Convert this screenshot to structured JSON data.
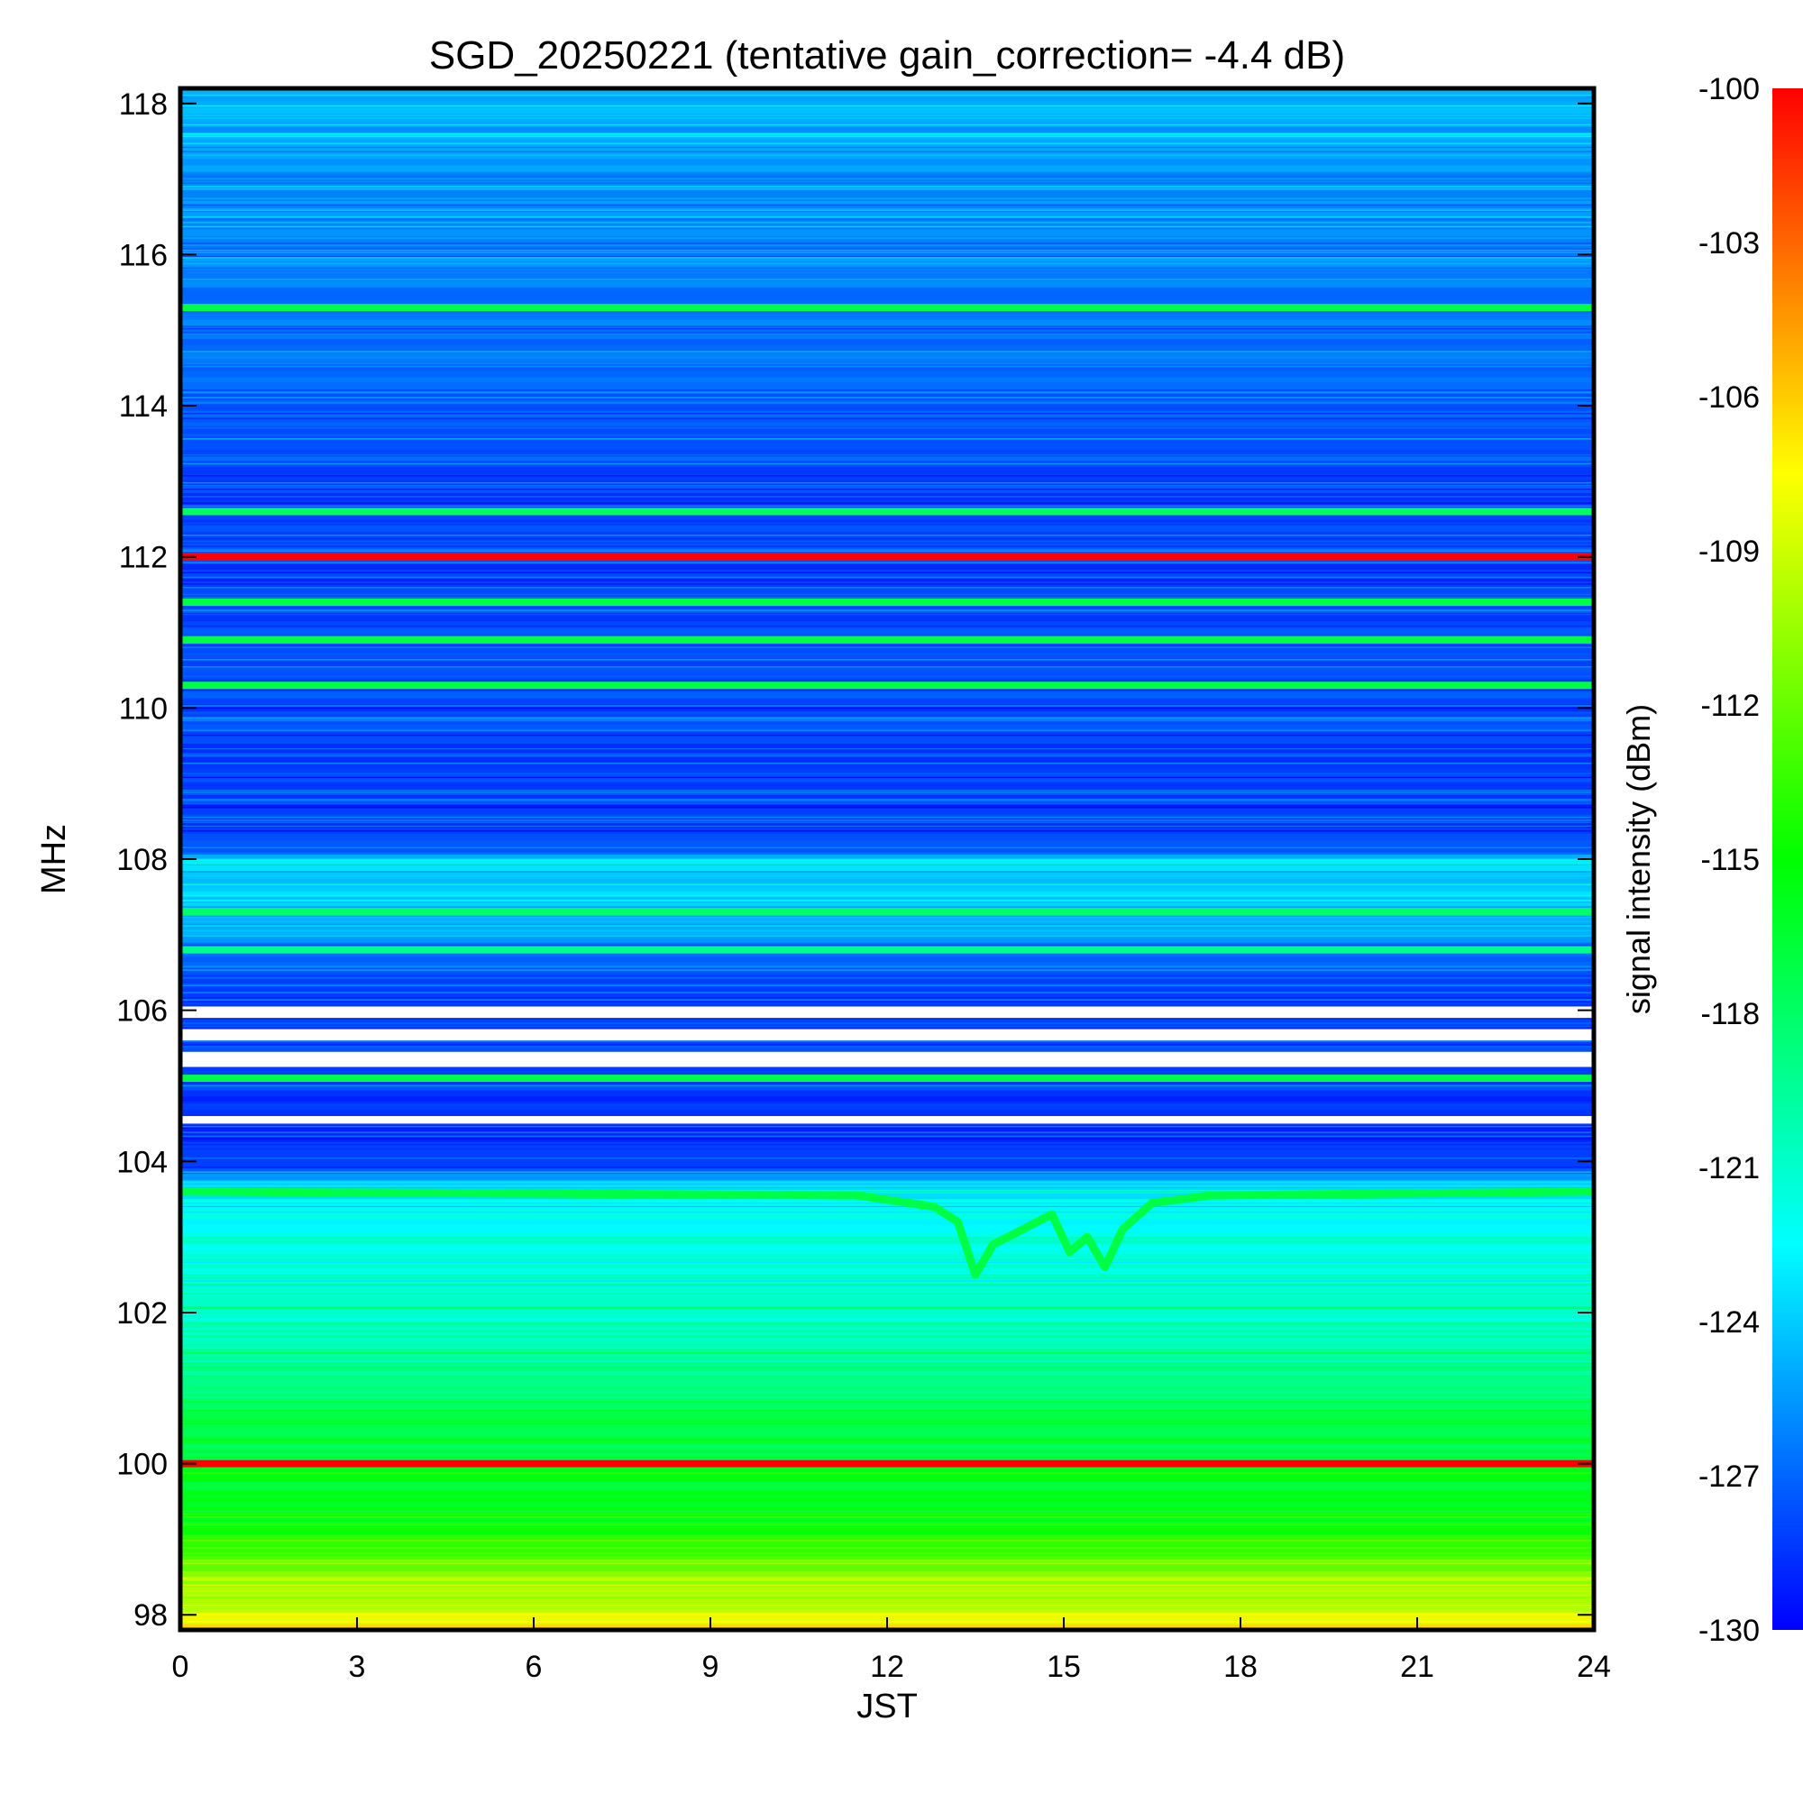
{
  "chart_data": {
    "type": "heatmap",
    "title": "SGD_20250221 (tentative gain_correction= -4.4 dB)",
    "xlabel": "JST",
    "ylabel": "MHz",
    "xlim": [
      0,
      24
    ],
    "ylim": [
      97.8,
      118.2
    ],
    "x_ticks": [
      "0",
      "3",
      "6",
      "9",
      "12",
      "15",
      "18",
      "21",
      "24"
    ],
    "y_ticks": [
      "98",
      "100",
      "102",
      "104",
      "106",
      "108",
      "110",
      "112",
      "114",
      "116",
      "118"
    ],
    "colorbar": {
      "label": "signal intensity (dBm)",
      "range": [
        -130,
        -100
      ],
      "ticks": [
        "-100",
        "-103",
        "-106",
        "-109",
        "-112",
        "-115",
        "-118",
        "-121",
        "-124",
        "-127",
        "-130"
      ],
      "colormap": [
        "#0000ff",
        "#00ffff",
        "#00ff00",
        "#ffff00",
        "#ff0000"
      ]
    },
    "background_profile": [
      {
        "freq": 97.8,
        "dbm": -106.5
      },
      {
        "freq": 98.2,
        "dbm": -109.5
      },
      {
        "freq": 98.6,
        "dbm": -112
      },
      {
        "freq": 99.1,
        "dbm": -115
      },
      {
        "freq": 100.0,
        "dbm": -116.5
      },
      {
        "freq": 101.0,
        "dbm": -118.5
      },
      {
        "freq": 102.0,
        "dbm": -121
      },
      {
        "freq": 103.0,
        "dbm": -122
      },
      {
        "freq": 103.6,
        "dbm": -123
      },
      {
        "freq": 104.0,
        "dbm": -128.5
      },
      {
        "freq": 106.4,
        "dbm": -128
      },
      {
        "freq": 107.5,
        "dbm": -123.5
      },
      {
        "freq": 108.0,
        "dbm": -124
      },
      {
        "freq": 108.1,
        "dbm": -128
      },
      {
        "freq": 112.5,
        "dbm": -128
      },
      {
        "freq": 118.2,
        "dbm": -125
      }
    ],
    "strong_lines": [
      {
        "freq": 112.0,
        "dbm": -100
      },
      {
        "freq": 100.0,
        "dbm": -100
      },
      {
        "freq": 105.1,
        "dbm": -117
      },
      {
        "freq": 110.3,
        "dbm": -117
      },
      {
        "freq": 110.9,
        "dbm": -117
      },
      {
        "freq": 111.4,
        "dbm": -117
      },
      {
        "freq": 112.6,
        "dbm": -118
      },
      {
        "freq": 115.3,
        "dbm": -117
      },
      {
        "freq": 107.3,
        "dbm": -118
      },
      {
        "freq": 106.8,
        "dbm": -119
      }
    ],
    "no_data_bands": [
      [
        105.25,
        105.45
      ],
      [
        105.6,
        105.75
      ],
      [
        105.9,
        106.05
      ],
      [
        104.5,
        104.6
      ]
    ],
    "varying_signal": {
      "baseline_freq": 103.55,
      "dbm": -117,
      "track": [
        [
          0,
          103.6
        ],
        [
          11.5,
          103.55
        ],
        [
          12.8,
          103.4
        ],
        [
          13.2,
          103.2
        ],
        [
          13.5,
          102.5
        ],
        [
          13.8,
          102.9
        ],
        [
          14.3,
          103.1
        ],
        [
          14.8,
          103.3
        ],
        [
          15.1,
          102.8
        ],
        [
          15.4,
          103.0
        ],
        [
          15.7,
          102.6
        ],
        [
          16.0,
          103.1
        ],
        [
          16.5,
          103.45
        ],
        [
          17.5,
          103.55
        ],
        [
          24,
          103.6
        ]
      ]
    }
  }
}
